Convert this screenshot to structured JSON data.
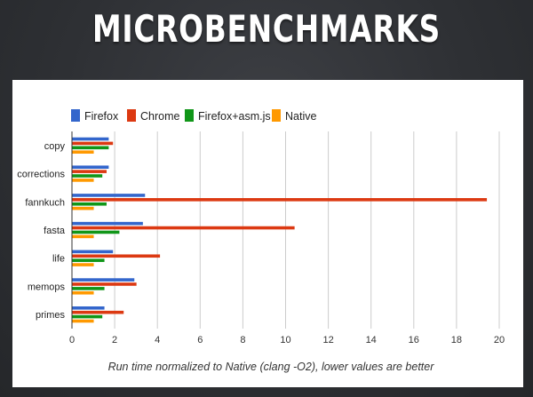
{
  "slide": {
    "title": "MICROBENCHMARKS"
  },
  "chart_data": {
    "type": "bar",
    "orientation": "horizontal",
    "categories": [
      "copy",
      "corrections",
      "fannkuch",
      "fasta",
      "life",
      "memops",
      "primes"
    ],
    "series": [
      {
        "name": "Firefox",
        "color": "#3366cc",
        "values": [
          1.7,
          1.7,
          3.4,
          3.3,
          1.9,
          2.9,
          1.5
        ]
      },
      {
        "name": "Chrome",
        "color": "#dc3912",
        "values": [
          1.9,
          1.6,
          19.4,
          10.4,
          4.1,
          3.0,
          2.4
        ]
      },
      {
        "name": "Firefox+asm.js",
        "color": "#109618",
        "values": [
          1.7,
          1.4,
          1.6,
          2.2,
          1.5,
          1.5,
          1.4
        ]
      },
      {
        "name": "Native",
        "color": "#ff9900",
        "values": [
          1.0,
          1.0,
          1.0,
          1.0,
          1.0,
          1.0,
          1.0
        ]
      }
    ],
    "xlim": [
      0,
      20
    ],
    "xticks": [
      0,
      2,
      4,
      6,
      8,
      10,
      12,
      14,
      16,
      18,
      20
    ],
    "xlabel": "Run time normalized to Native (clang -O2), lower values are better",
    "ylabel": "",
    "grid": true,
    "legend_position": "top"
  }
}
